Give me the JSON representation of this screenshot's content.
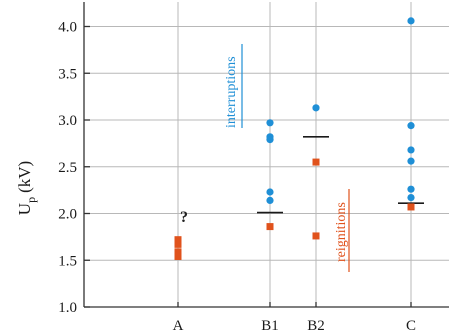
{
  "chart_data": {
    "type": "scatter",
    "title": "",
    "xlabel": "",
    "ylabel": "U",
    "ylabel_subscript": "p",
    "ylabel_unit": "(kV)",
    "categories": [
      "A",
      "B1",
      "B2",
      "C"
    ],
    "ylim": [
      1.0,
      4.2
    ],
    "yticks": [
      "1.0",
      "1.5",
      "2.0",
      "2.5",
      "3.0",
      "3.5",
      "4.0"
    ],
    "grid": {
      "horizontal": true,
      "vertical": true
    },
    "series": [
      {
        "name": "interruptions",
        "marker": "circle",
        "color": "#1f8fd6",
        "points": [
          {
            "x": "B1",
            "y": 2.97
          },
          {
            "x": "B1",
            "y": 2.82
          },
          {
            "x": "B1",
            "y": 2.79
          },
          {
            "x": "B1",
            "y": 2.23
          },
          {
            "x": "B1",
            "y": 2.14
          },
          {
            "x": "B2",
            "y": 3.13
          },
          {
            "x": "C",
            "y": 4.06
          },
          {
            "x": "C",
            "y": 2.94
          },
          {
            "x": "C",
            "y": 2.68
          },
          {
            "x": "C",
            "y": 2.56
          },
          {
            "x": "C",
            "y": 2.26
          },
          {
            "x": "C",
            "y": 2.17
          }
        ]
      },
      {
        "name": "reignitions",
        "marker": "square",
        "color": "#e0521c",
        "points": [
          {
            "x": "A",
            "y": 1.72
          },
          {
            "x": "A",
            "y": 1.67
          },
          {
            "x": "A",
            "y": 1.59
          },
          {
            "x": "A",
            "y": 1.54
          },
          {
            "x": "B1",
            "y": 1.86
          },
          {
            "x": "B2",
            "y": 2.55
          },
          {
            "x": "B2",
            "y": 1.76
          },
          {
            "x": "C",
            "y": 2.07
          }
        ]
      }
    ],
    "mean_lines": [
      {
        "x": "B1",
        "y": 2.01
      },
      {
        "x": "B2",
        "y": 2.82
      },
      {
        "x": "C",
        "y": 2.11
      }
    ],
    "annotations": [
      {
        "text": "?",
        "x": "A",
        "y": 1.9
      }
    ]
  }
}
